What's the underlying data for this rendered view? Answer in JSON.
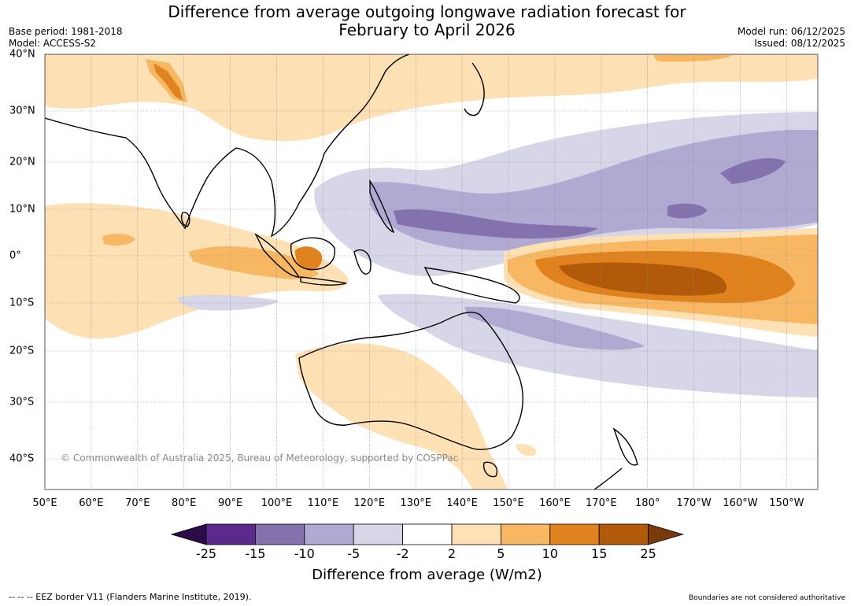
{
  "title": {
    "line1": "Difference from average outgoing longwave radiation forecast for",
    "line2": "February to April 2026"
  },
  "meta_left": {
    "base_period": "Base period: 1981-2018",
    "model": "Model: ACCESS-S2"
  },
  "meta_right": {
    "model_run": "Model run: 06/12/2025",
    "issued": "Issued: 08/12/2025"
  },
  "map": {
    "lon_labels": [
      "50°E",
      "60°E",
      "70°E",
      "80°E",
      "90°E",
      "100°E",
      "110°E",
      "120°E",
      "130°E",
      "140°E",
      "150°E",
      "160°E",
      "170°E",
      "180°",
      "170°W",
      "160°W",
      "150°W"
    ],
    "lat_labels": [
      "40°N",
      "30°N",
      "20°N",
      "10°N",
      "0°",
      "10°S",
      "20°S",
      "30°S",
      "40°S"
    ],
    "copyright": "© Commonwealth of Australia 2025, Bureau of Meteorology, supported by COSPPac"
  },
  "colorbar": {
    "colors": [
      "#2d0a4a",
      "#5b2a8c",
      "#8372ae",
      "#b0a9d2",
      "#d6d6e8",
      "#ffffff",
      "#fde0b4",
      "#f8b763",
      "#e0821e",
      "#b05a0a",
      "#7a3b0c"
    ],
    "ticks": [
      "-25",
      "-15",
      "-10",
      "-5",
      "-2",
      "2",
      "5",
      "10",
      "15",
      "25"
    ],
    "label": "Difference from average (W/m2)"
  },
  "footer": {
    "left": "--  --  -- EEZ border V11 (Flanders Marine Institute, 2019).",
    "right": "Boundaries are not considered authoritative"
  }
}
